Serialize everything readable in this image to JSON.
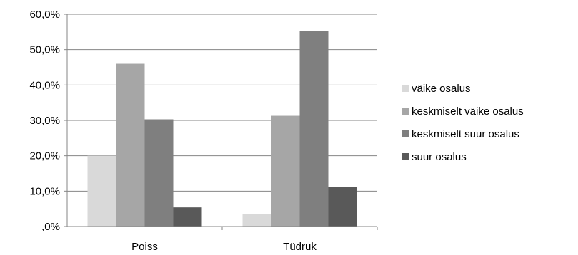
{
  "chart_data": {
    "type": "bar",
    "categories": [
      "Poiss",
      "Tüdruk"
    ],
    "series": [
      {
        "name": "väike osalus",
        "values": [
          20.0,
          3.5
        ],
        "color": "#d9d9d9"
      },
      {
        "name": "keskmiselt väike osalus",
        "values": [
          46.0,
          31.3
        ],
        "color": "#a6a6a6"
      },
      {
        "name": "keskmiselt suur osalus",
        "values": [
          30.3,
          55.2
        ],
        "color": "#7f7f7f"
      },
      {
        "name": "suur osalus",
        "values": [
          5.4,
          11.2
        ],
        "color": "#595959"
      }
    ],
    "yticks": [
      ",0%",
      "10,0%",
      "20,0%",
      "30,0%",
      "40,0%",
      "50,0%",
      "60,0%"
    ],
    "ylim": [
      0,
      60
    ],
    "grid": true,
    "legend_position": "right"
  }
}
